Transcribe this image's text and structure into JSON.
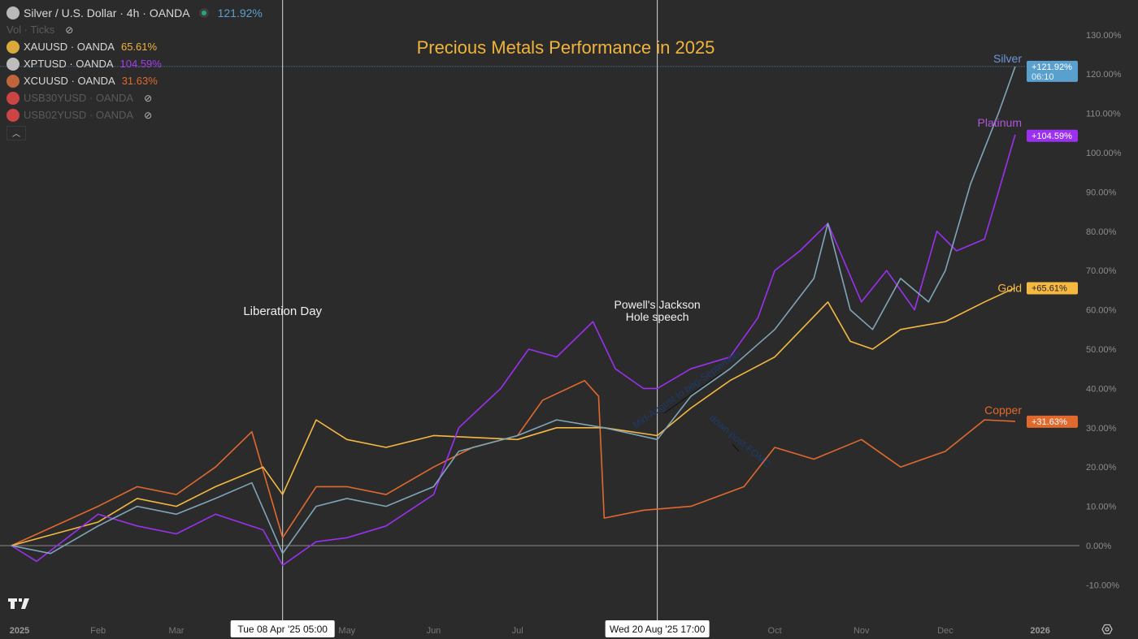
{
  "legend": {
    "main": {
      "symbol": "Silver / U.S. Dollar · 4h · OANDA",
      "value": "121.92%",
      "color": "#5aa0cf"
    },
    "vol": "Vol · Ticks",
    "items": [
      {
        "symbol": "XAUUSD · OANDA",
        "value": "65.61%",
        "color": "#f0b43c",
        "icon": "gold-bars-icon",
        "hidden": false
      },
      {
        "symbol": "XPTUSD · OANDA",
        "value": "104.59%",
        "color": "#a43cf0",
        "icon": "platinum-bars-icon",
        "hidden": false
      },
      {
        "symbol": "XCUUSD · OANDA",
        "value": "31.63%",
        "color": "#e0692e",
        "icon": "copper-bars-icon",
        "hidden": false
      },
      {
        "symbol": "USB30YUSD · OANDA",
        "value": "",
        "icon": "us-flag-icon",
        "hidden": true
      },
      {
        "symbol": "USB02YUSD · OANDA",
        "value": "",
        "icon": "us-flag-icon",
        "hidden": true
      }
    ]
  },
  "chart_data": {
    "type": "line",
    "title": "Precious Metals Performance in 2025",
    "ylabel": "",
    "xlabel": "",
    "ylim": [
      -15,
      135
    ],
    "y_ticks": [
      "-10.00%",
      "0.00%",
      "10.00%",
      "20.00%",
      "30.00%",
      "40.00%",
      "50.00%",
      "60.00%",
      "70.00%",
      "80.00%",
      "90.00%",
      "100.00%",
      "110.00%",
      "120.00%",
      "130.00%"
    ],
    "x_ticks": [
      {
        "label": "2025",
        "date": "2025-01-01",
        "bold": true
      },
      {
        "label": "Feb",
        "date": "2025-02-01"
      },
      {
        "label": "Mar",
        "date": "2025-03-01"
      },
      {
        "label": "May",
        "date": "2025-05-01"
      },
      {
        "label": "Jun",
        "date": "2025-06-01"
      },
      {
        "label": "Jul",
        "date": "2025-07-01"
      },
      {
        "label": "Oct",
        "date": "2025-10-01"
      },
      {
        "label": "Nov",
        "date": "2025-11-01"
      },
      {
        "label": "Dec",
        "date": "2025-12-01"
      },
      {
        "label": "2026",
        "date": "2026-01-01",
        "bold": true
      }
    ],
    "grid": false,
    "series": [
      {
        "name": "Silver",
        "color": "#7fa6b8",
        "badge": "+121.92%",
        "badge_sub": "06:10",
        "badge_color": "#5aa0cf",
        "label_color": "#6f95d8",
        "points": [
          [
            "2025-01-01",
            0
          ],
          [
            "2025-01-15",
            -2
          ],
          [
            "2025-02-01",
            5
          ],
          [
            "2025-02-15",
            10
          ],
          [
            "2025-03-01",
            8
          ],
          [
            "2025-03-15",
            12
          ],
          [
            "2025-03-28",
            16
          ],
          [
            "2025-04-08",
            -2
          ],
          [
            "2025-04-20",
            10
          ],
          [
            "2025-05-01",
            12
          ],
          [
            "2025-05-15",
            10
          ],
          [
            "2025-06-01",
            15
          ],
          [
            "2025-06-10",
            24
          ],
          [
            "2025-07-01",
            28
          ],
          [
            "2025-07-15",
            32
          ],
          [
            "2025-08-01",
            30
          ],
          [
            "2025-08-20",
            27
          ],
          [
            "2025-09-01",
            38
          ],
          [
            "2025-09-15",
            45
          ],
          [
            "2025-10-01",
            55
          ],
          [
            "2025-10-15",
            68
          ],
          [
            "2025-10-20",
            82
          ],
          [
            "2025-10-28",
            60
          ],
          [
            "2025-11-05",
            55
          ],
          [
            "2025-11-15",
            68
          ],
          [
            "2025-11-25",
            62
          ],
          [
            "2025-12-01",
            70
          ],
          [
            "2025-12-10",
            92
          ],
          [
            "2025-12-20",
            110
          ],
          [
            "2025-12-26",
            121.92
          ]
        ]
      },
      {
        "name": "Platinum",
        "color": "#9b30f0",
        "badge": "+104.59%",
        "badge_color": "#9b30f0",
        "label_color": "#b255d8",
        "points": [
          [
            "2025-01-01",
            0
          ],
          [
            "2025-01-10",
            -4
          ],
          [
            "2025-02-01",
            8
          ],
          [
            "2025-02-15",
            5
          ],
          [
            "2025-03-01",
            3
          ],
          [
            "2025-03-15",
            8
          ],
          [
            "2025-04-01",
            4
          ],
          [
            "2025-04-08",
            -5
          ],
          [
            "2025-04-20",
            1
          ],
          [
            "2025-05-01",
            2
          ],
          [
            "2025-05-15",
            5
          ],
          [
            "2025-06-01",
            13
          ],
          [
            "2025-06-10",
            30
          ],
          [
            "2025-06-25",
            40
          ],
          [
            "2025-07-05",
            50
          ],
          [
            "2025-07-15",
            48
          ],
          [
            "2025-07-28",
            57
          ],
          [
            "2025-08-05",
            45
          ],
          [
            "2025-08-15",
            40
          ],
          [
            "2025-08-20",
            40
          ],
          [
            "2025-09-01",
            45
          ],
          [
            "2025-09-15",
            48
          ],
          [
            "2025-09-25",
            58
          ],
          [
            "2025-10-01",
            70
          ],
          [
            "2025-10-10",
            75
          ],
          [
            "2025-10-20",
            82
          ],
          [
            "2025-11-01",
            62
          ],
          [
            "2025-11-10",
            70
          ],
          [
            "2025-11-20",
            60
          ],
          [
            "2025-11-28",
            80
          ],
          [
            "2025-12-05",
            75
          ],
          [
            "2025-12-15",
            78
          ],
          [
            "2025-12-20",
            90
          ],
          [
            "2025-12-26",
            104.59
          ]
        ]
      },
      {
        "name": "Gold",
        "color": "#f5b942",
        "badge": "+65.61%",
        "badge_color": "#f5b942",
        "label_color": "#f5b942",
        "points": [
          [
            "2025-01-01",
            0
          ],
          [
            "2025-02-01",
            6
          ],
          [
            "2025-02-15",
            12
          ],
          [
            "2025-03-01",
            10
          ],
          [
            "2025-03-15",
            15
          ],
          [
            "2025-04-01",
            20
          ],
          [
            "2025-04-08",
            13
          ],
          [
            "2025-04-20",
            32
          ],
          [
            "2025-05-01",
            27
          ],
          [
            "2025-05-15",
            25
          ],
          [
            "2025-06-01",
            28
          ],
          [
            "2025-07-01",
            27
          ],
          [
            "2025-07-15",
            30
          ],
          [
            "2025-08-01",
            30
          ],
          [
            "2025-08-20",
            28
          ],
          [
            "2025-09-01",
            35
          ],
          [
            "2025-09-15",
            42
          ],
          [
            "2025-10-01",
            48
          ],
          [
            "2025-10-20",
            62
          ],
          [
            "2025-10-28",
            52
          ],
          [
            "2025-11-05",
            50
          ],
          [
            "2025-11-15",
            55
          ],
          [
            "2025-12-01",
            57
          ],
          [
            "2025-12-15",
            62
          ],
          [
            "2025-12-26",
            65.61
          ]
        ]
      },
      {
        "name": "Copper",
        "color": "#e0692e",
        "badge": "+31.63%",
        "badge_color": "#e0692e",
        "label_color": "#e0692e",
        "points": [
          [
            "2025-01-01",
            0
          ],
          [
            "2025-02-01",
            10
          ],
          [
            "2025-02-15",
            15
          ],
          [
            "2025-03-01",
            13
          ],
          [
            "2025-03-15",
            20
          ],
          [
            "2025-03-28",
            29
          ],
          [
            "2025-04-08",
            2
          ],
          [
            "2025-04-20",
            15
          ],
          [
            "2025-05-01",
            15
          ],
          [
            "2025-05-15",
            13
          ],
          [
            "2025-06-01",
            20
          ],
          [
            "2025-06-15",
            25
          ],
          [
            "2025-07-01",
            28
          ],
          [
            "2025-07-10",
            37
          ],
          [
            "2025-07-25",
            42
          ],
          [
            "2025-07-30",
            38
          ],
          [
            "2025-08-01",
            7
          ],
          [
            "2025-08-15",
            9
          ],
          [
            "2025-09-01",
            10
          ],
          [
            "2025-09-20",
            15
          ],
          [
            "2025-10-01",
            25
          ],
          [
            "2025-10-15",
            22
          ],
          [
            "2025-11-01",
            27
          ],
          [
            "2025-11-15",
            20
          ],
          [
            "2025-12-01",
            24
          ],
          [
            "2025-12-15",
            32
          ],
          [
            "2025-12-26",
            31.63
          ]
        ]
      }
    ],
    "annotations": [
      {
        "text": "Liberation Day",
        "date": "2025-04-08",
        "crosshair_label": "Tue 08 Apr '25   05:00"
      },
      {
        "text": "Powell's Jackson",
        "text2": "Hole speech",
        "date": "2025-08-20",
        "crosshair_label": "Wed 20 Aug '25   17:00"
      },
      {
        "text": "Mid-August to beg-September",
        "color": "#1f3a6b"
      },
      {
        "text": "down post-FOMC",
        "color": "#1f3a6b"
      }
    ]
  }
}
